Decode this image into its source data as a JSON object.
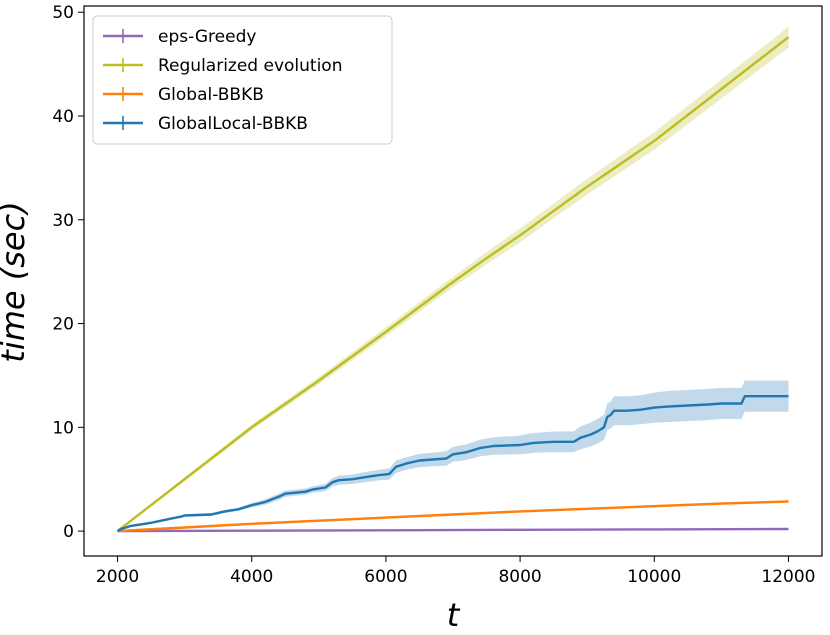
{
  "chart_data": {
    "type": "line",
    "title": "",
    "xlabel": "t",
    "ylabel": "time (sec)",
    "xlim": [
      1500,
      12500
    ],
    "ylim": [
      -2.4,
      50.6
    ],
    "xticks": [
      2000,
      4000,
      6000,
      8000,
      10000,
      12000
    ],
    "xtick_labels": [
      "2000",
      "4000",
      "6000",
      "8000",
      "10000",
      "12000"
    ],
    "yticks": [
      0,
      10,
      20,
      30,
      40,
      50
    ],
    "ytick_labels": [
      "0",
      "10",
      "20",
      "30",
      "40",
      "50"
    ],
    "grid": false,
    "legend_position": "top-left",
    "series": [
      {
        "name": "eps-Greedy",
        "color": "#9467bd",
        "x": [
          2000,
          4000,
          6000,
          8000,
          10000,
          12000
        ],
        "values": [
          0.0,
          0.04,
          0.08,
          0.12,
          0.16,
          0.2
        ],
        "band": 0.02
      },
      {
        "name": "Regularized evolution",
        "color": "#bcbd22",
        "x": [
          2000,
          3000,
          4000,
          5000,
          6000,
          7000,
          7500,
          8000,
          9000,
          10000,
          11000,
          12000
        ],
        "values": [
          0.0,
          5.0,
          10.0,
          14.5,
          19.2,
          24.0,
          26.3,
          28.5,
          33.2,
          37.6,
          42.6,
          47.6
        ],
        "band_start": 0.1,
        "band_end": 1.0
      },
      {
        "name": "Global-BBKB",
        "color": "#ff7f0e",
        "x": [
          2000,
          3000,
          4000,
          5000,
          6000,
          7000,
          8000,
          9000,
          10000,
          11000,
          12000
        ],
        "values": [
          0.0,
          0.35,
          0.7,
          1.0,
          1.3,
          1.6,
          1.9,
          2.15,
          2.4,
          2.65,
          2.85
        ],
        "band": 0.12
      },
      {
        "name": "GlobalLocal-BBKB",
        "color": "#1f77b4",
        "x": [
          2000,
          2050,
          2200,
          2500,
          2800,
          2950,
          3000,
          3400,
          3600,
          3800,
          4000,
          4200,
          4400,
          4500,
          4800,
          4900,
          5100,
          5200,
          5300,
          5500,
          5700,
          5900,
          6050,
          6150,
          6300,
          6500,
          6700,
          6900,
          7000,
          7100,
          7200,
          7400,
          7600,
          8000,
          8100,
          8200,
          8500,
          8800,
          8900,
          9050,
          9150,
          9250,
          9300,
          9350,
          9400,
          9600,
          9800,
          10000,
          10200,
          10500,
          10800,
          11000,
          11300,
          11350,
          11600,
          12000
        ],
        "values": [
          0.0,
          0.2,
          0.5,
          0.8,
          1.2,
          1.4,
          1.5,
          1.6,
          1.9,
          2.1,
          2.5,
          2.8,
          3.3,
          3.6,
          3.8,
          4.0,
          4.2,
          4.7,
          4.9,
          5.0,
          5.2,
          5.4,
          5.5,
          6.2,
          6.5,
          6.8,
          6.9,
          7.0,
          7.4,
          7.5,
          7.6,
          8.0,
          8.2,
          8.3,
          8.4,
          8.5,
          8.6,
          8.6,
          9.0,
          9.3,
          9.6,
          10.0,
          11.0,
          11.2,
          11.6,
          11.6,
          11.7,
          11.9,
          12.0,
          12.1,
          12.2,
          12.3,
          12.3,
          13.0,
          13.0,
          13.0
        ],
        "band_low": [
          0.0,
          0.15,
          0.4,
          0.7,
          1.1,
          1.3,
          1.4,
          1.45,
          1.75,
          1.95,
          2.3,
          2.55,
          3.0,
          3.3,
          3.5,
          3.7,
          3.85,
          4.3,
          4.45,
          4.55,
          4.7,
          4.9,
          4.95,
          5.6,
          5.9,
          6.15,
          6.25,
          6.3,
          6.7,
          6.75,
          6.85,
          7.2,
          7.35,
          7.4,
          7.45,
          7.55,
          7.6,
          7.6,
          7.9,
          8.15,
          8.4,
          8.8,
          9.7,
          9.9,
          10.2,
          10.2,
          10.3,
          10.45,
          10.5,
          10.6,
          10.7,
          10.8,
          10.8,
          11.5,
          11.5,
          11.5
        ],
        "band_high": [
          0.0,
          0.25,
          0.6,
          0.9,
          1.3,
          1.5,
          1.6,
          1.75,
          2.05,
          2.25,
          2.7,
          3.05,
          3.6,
          3.9,
          4.1,
          4.3,
          4.55,
          5.1,
          5.35,
          5.45,
          5.7,
          5.9,
          6.05,
          6.8,
          7.1,
          7.45,
          7.55,
          7.7,
          8.1,
          8.25,
          8.35,
          8.8,
          9.05,
          9.2,
          9.35,
          9.45,
          9.6,
          9.6,
          10.1,
          10.45,
          10.8,
          11.2,
          12.3,
          12.5,
          13.0,
          13.0,
          13.1,
          13.35,
          13.5,
          13.6,
          13.7,
          13.8,
          13.8,
          14.5,
          14.5,
          14.5
        ]
      }
    ],
    "legend_order": [
      "eps-Greedy",
      "Regularized evolution",
      "Global-BBKB",
      "GlobalLocal-BBKB"
    ]
  }
}
